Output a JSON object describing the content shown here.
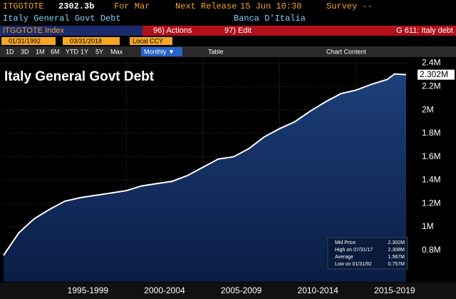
{
  "header": {
    "ticker": "ITGGTOTE",
    "last": "2302.3b",
    "period": "For Mar",
    "release_label": "Next Release",
    "release_time": "15 Jun 10:30",
    "survey": "Survey --",
    "name": "Italy General Govt Debt",
    "source": "Banca D'Italia"
  },
  "toolbar": {
    "security": "ITGGTOTE Index",
    "actions": "96) Actions",
    "edit": "97) Edit",
    "page": "G 611: Italy debt",
    "start": "01/31/1992",
    "end": "03/31/2018",
    "currency": "Local CCY",
    "ranges": [
      "1D",
      "3D",
      "1M",
      "6M",
      "YTD",
      "1Y",
      "5Y",
      "Max"
    ],
    "frequency": "Monthly ▼",
    "table": "Table",
    "content": "Chart Content"
  },
  "chart_data": {
    "type": "line",
    "title": "Italy General Govt Debt",
    "x": [
      1992,
      1993,
      1994,
      1995,
      1996,
      1997,
      1998,
      1999,
      2000,
      2001,
      2002,
      2003,
      2004,
      2005,
      2006,
      2007,
      2008,
      2009,
      2010,
      2011,
      2012,
      2013,
      2014,
      2015,
      2016,
      2017,
      2017.5,
      2018.25
    ],
    "series": [
      {
        "name": "Mid Price",
        "color": "#ffffff",
        "values": [
          0.757,
          0.95,
          1.07,
          1.15,
          1.22,
          1.25,
          1.27,
          1.29,
          1.31,
          1.35,
          1.37,
          1.39,
          1.44,
          1.51,
          1.58,
          1.6,
          1.67,
          1.77,
          1.84,
          1.9,
          1.99,
          2.07,
          2.14,
          2.17,
          2.22,
          2.26,
          2.308,
          2.302
        ]
      }
    ],
    "xlim": [
      1992,
      2018.25
    ],
    "xticks": [
      {
        "value": 1997.5,
        "label": "1995-1999"
      },
      {
        "value": 2002.5,
        "label": "2000-2004"
      },
      {
        "value": 2007.5,
        "label": "2005-2009"
      },
      {
        "value": 2012.5,
        "label": "2010-2014"
      },
      {
        "value": 2017.5,
        "label": "2015-2019"
      }
    ],
    "ylim": [
      0.53,
      2.44
    ],
    "yticks": [
      {
        "value": 0.8,
        "label": "0.8M"
      },
      {
        "value": 1,
        "label": "1M"
      },
      {
        "value": 1.2,
        "label": "1.2M"
      },
      {
        "value": 1.4,
        "label": "1.4M"
      },
      {
        "value": 1.6,
        "label": "1.6M"
      },
      {
        "value": 1.8,
        "label": "1.8M"
      },
      {
        "value": 2,
        "label": "2M"
      },
      {
        "value": 2.2,
        "label": "2.2M"
      },
      {
        "value": 2.4,
        "label": "2.4M"
      }
    ],
    "legend_rows": [
      {
        "label": "Mid Price",
        "value": 2.302,
        "value_label": "2.302M"
      },
      {
        "label": "High on 07/31/17",
        "value": 2.308,
        "value_label": "2.308M"
      },
      {
        "label": "Average",
        "value": 1.567,
        "value_label": "1.567M"
      },
      {
        "label": "Low on 01/31/92",
        "value": 0.757,
        "value_label": "0.757M"
      }
    ]
  }
}
